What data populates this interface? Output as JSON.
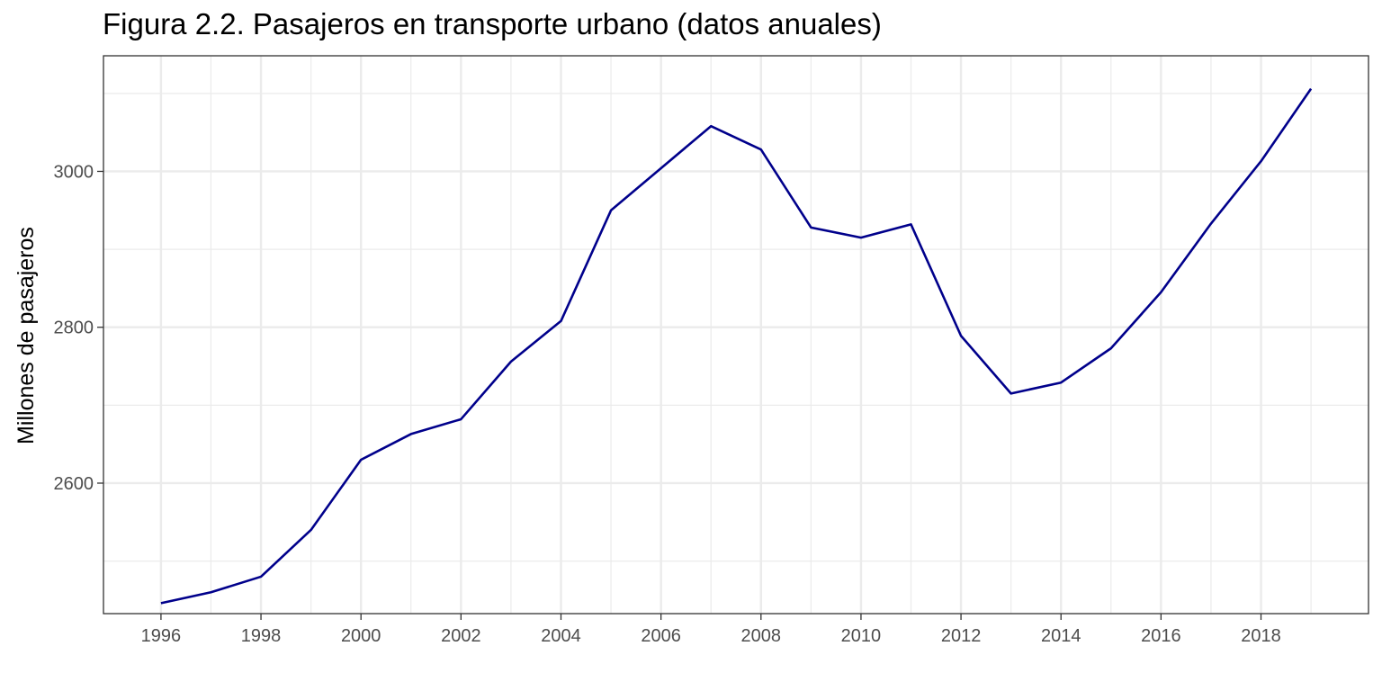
{
  "chart_data": {
    "type": "line",
    "title": "Figura 2.2. Pasajeros en transporte urbano (datos anuales)",
    "xlabel": "",
    "ylabel": "Millones de pasajeros",
    "x": [
      1996,
      1997,
      1998,
      1999,
      2000,
      2001,
      2002,
      2003,
      2004,
      2005,
      2006,
      2007,
      2008,
      2009,
      2010,
      2011,
      2012,
      2013,
      2014,
      2015,
      2016,
      2017,
      2018,
      2019
    ],
    "series": [
      {
        "values": [
          2446,
          2460,
          2480,
          2540,
          2630,
          2663,
          2682,
          2756,
          2808,
          2950,
          3004,
          3058,
          3028,
          2928,
          2915,
          2932,
          2789,
          2715,
          2729,
          2773,
          2845,
          2933,
          3013,
          3106
        ],
        "color": "#00008B"
      }
    ],
    "xticks": [
      "1996",
      "1998",
      "2000",
      "2002",
      "2004",
      "2006",
      "2008",
      "2010",
      "2012",
      "2014",
      "2016",
      "2018"
    ],
    "yticks": [
      "2600",
      "2800",
      "3000"
    ],
    "xlim": [
      1994.85,
      2020.15
    ],
    "ylim": [
      2432.6,
      3148.3
    ],
    "grid": true,
    "colors": {
      "line": "#00008B",
      "grid": "#ebebeb",
      "panel_border": "#333333",
      "tick_text": "#4d4d4d"
    }
  }
}
